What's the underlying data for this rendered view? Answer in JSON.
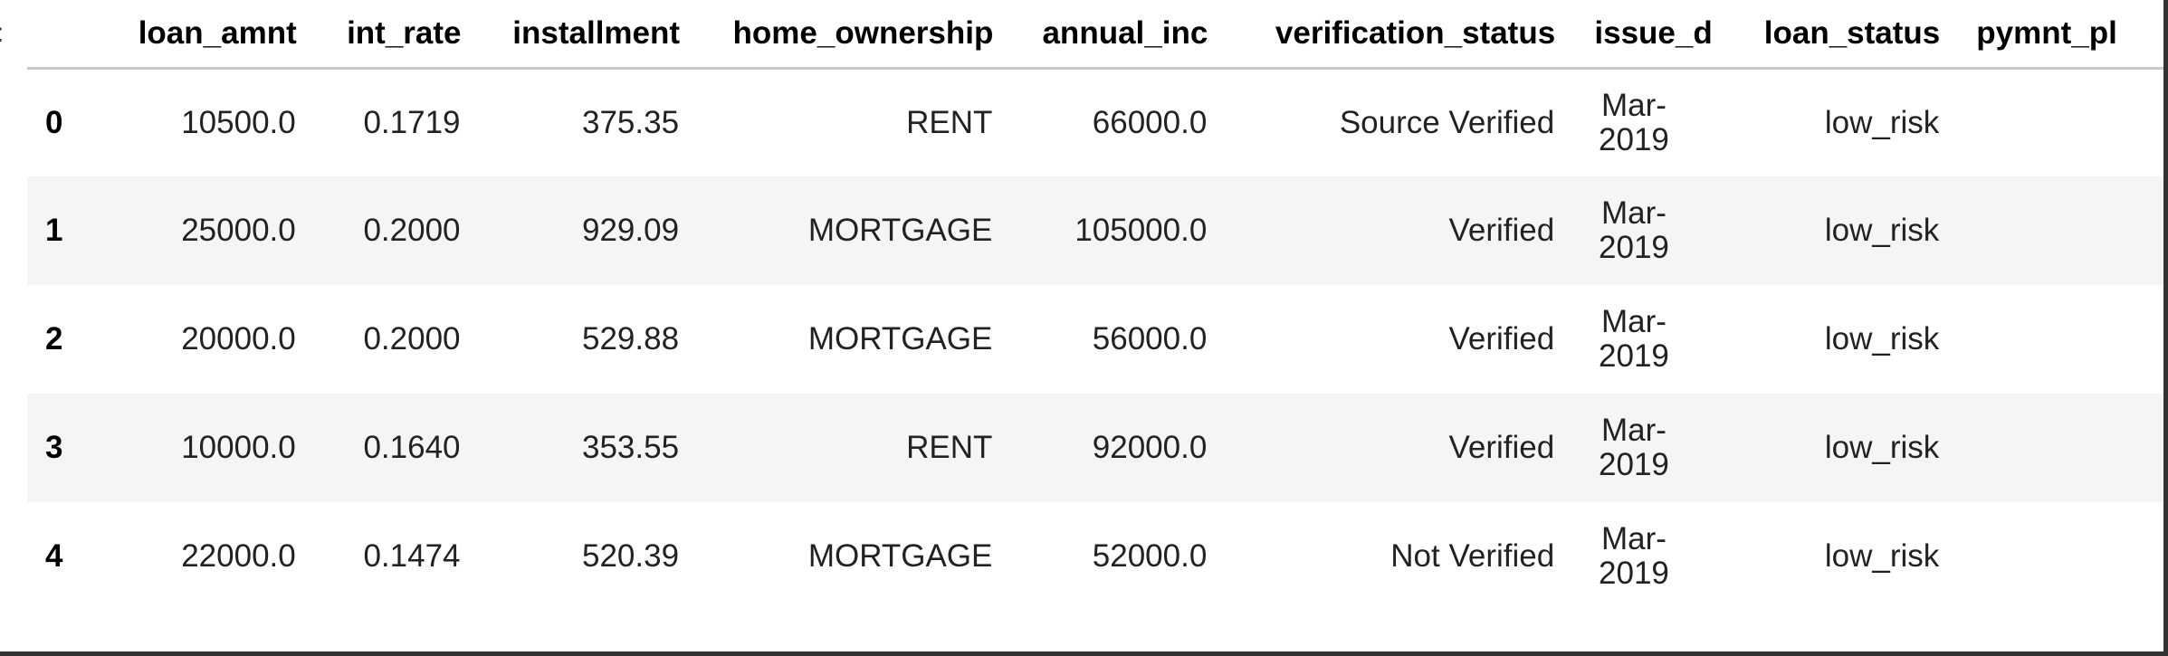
{
  "table": {
    "columns": [
      "loan_amnt",
      "int_rate",
      "installment",
      "home_ownership",
      "annual_inc",
      "verification_status",
      "issue_d",
      "loan_status",
      "pymnt_pl"
    ],
    "rows": [
      {
        "index": "0",
        "loan_amnt": "10500.0",
        "int_rate": "0.1719",
        "installment": "375.35",
        "home_ownership": "RENT",
        "annual_inc": "66000.0",
        "verification_status": "Source Verified",
        "issue_d_month": "Mar-",
        "issue_d_year": "2019",
        "loan_status": "low_risk"
      },
      {
        "index": "1",
        "loan_amnt": "25000.0",
        "int_rate": "0.2000",
        "installment": "929.09",
        "home_ownership": "MORTGAGE",
        "annual_inc": "105000.0",
        "verification_status": "Verified",
        "issue_d_month": "Mar-",
        "issue_d_year": "2019",
        "loan_status": "low_risk"
      },
      {
        "index": "2",
        "loan_amnt": "20000.0",
        "int_rate": "0.2000",
        "installment": "529.88",
        "home_ownership": "MORTGAGE",
        "annual_inc": "56000.0",
        "verification_status": "Verified",
        "issue_d_month": "Mar-",
        "issue_d_year": "2019",
        "loan_status": "low_risk"
      },
      {
        "index": "3",
        "loan_amnt": "10000.0",
        "int_rate": "0.1640",
        "installment": "353.55",
        "home_ownership": "RENT",
        "annual_inc": "92000.0",
        "verification_status": "Verified",
        "issue_d_month": "Mar-",
        "issue_d_year": "2019",
        "loan_status": "low_risk"
      },
      {
        "index": "4",
        "loan_amnt": "22000.0",
        "int_rate": "0.1474",
        "installment": "520.39",
        "home_ownership": "MORTGAGE",
        "annual_inc": "52000.0",
        "verification_status": "Not Verified",
        "issue_d_month": "Mar-",
        "issue_d_year": "2019",
        "loan_status": "low_risk"
      }
    ]
  },
  "colors": {
    "header_border": "#c8c8c8",
    "striped_row": "#f5f5f5",
    "text": "#222222"
  }
}
